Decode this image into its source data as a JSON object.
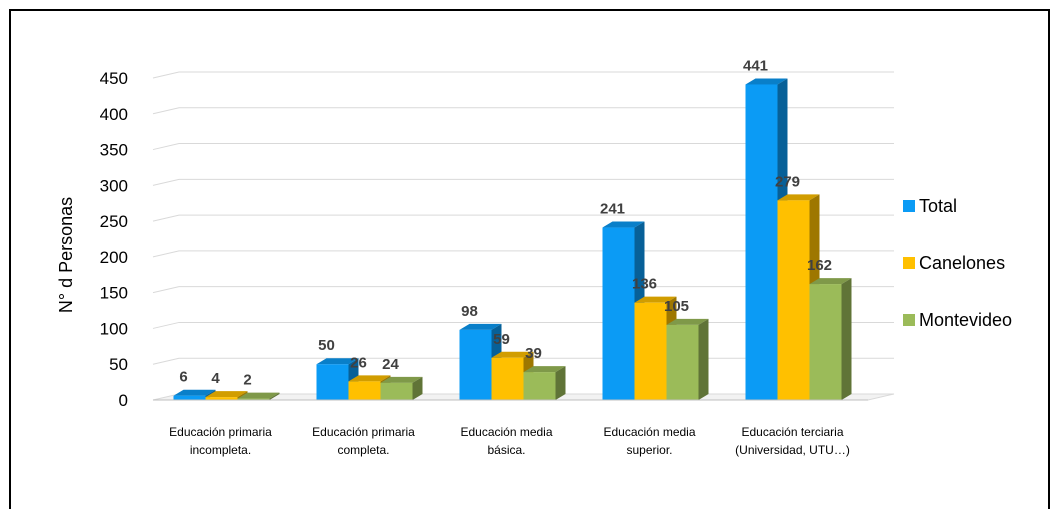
{
  "chart_data": {
    "type": "bar",
    "title": "",
    "xlabel": "",
    "ylabel": "N° d Personas",
    "ylim": [
      0,
      450
    ],
    "yticks": [
      0,
      50,
      100,
      150,
      200,
      250,
      300,
      350,
      400,
      450
    ],
    "grid": true,
    "legend_position": "right",
    "categories": [
      [
        "Educación primaria",
        "incompleta."
      ],
      [
        "Educación primaria",
        "completa."
      ],
      [
        "Educación media",
        "básica."
      ],
      [
        "Educación media",
        "superior."
      ],
      [
        "Educación terciaria",
        "(Universidad, UTU…)"
      ]
    ],
    "series": [
      {
        "name": "Total",
        "color": "#0B9BF5",
        "values": [
          6,
          50,
          98,
          241,
          441
        ]
      },
      {
        "name": "Canelones",
        "color": "#FFC000",
        "values": [
          4,
          26,
          59,
          136,
          279
        ]
      },
      {
        "name": "Montevideo",
        "color": "#9BBB59",
        "values": [
          2,
          24,
          39,
          105,
          162
        ]
      }
    ]
  }
}
